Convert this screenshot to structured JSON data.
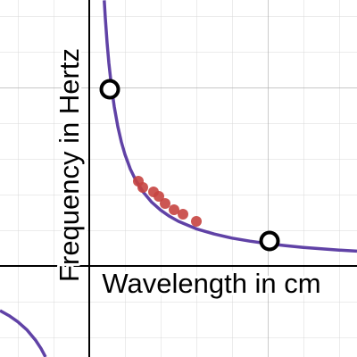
{
  "chart_data": {
    "type": "scatter",
    "x_label": "Wavelength in cm",
    "y_label": "Frequency in Hertz",
    "xlim": [
      -5,
      15
    ],
    "ylim": [
      -5.1,
      14.9
    ],
    "curve": {
      "color": "#6042a6",
      "x": [
        -5,
        -4.5,
        -4,
        -3.5,
        -3,
        -2.7,
        -2.45,
        null,
        0.84,
        0.9,
        1,
        1.1,
        1.25,
        1.4,
        1.6,
        1.8,
        2,
        2.3,
        2.6,
        3,
        3.5,
        4,
        4.5,
        5,
        6,
        7,
        8,
        9,
        10,
        11,
        12,
        13,
        14,
        15
      ],
      "values": [
        -2.5,
        -2.78,
        -3.13,
        -3.57,
        -4.17,
        -4.63,
        -5.1,
        null,
        14.88,
        13.89,
        12.5,
        11.36,
        10,
        8.93,
        7.81,
        6.94,
        6.25,
        5.43,
        4.81,
        4.17,
        3.57,
        3.13,
        2.78,
        2.5,
        2.08,
        1.79,
        1.56,
        1.39,
        1.25,
        1.14,
        1.04,
        0.96,
        0.89,
        0.83
      ]
    },
    "series": [
      {
        "color": "#c74440",
        "x": [
          2.75,
          3,
          3.6,
          3.9,
          4.25,
          4.75,
          5.25,
          6
        ],
        "values": [
          4.75,
          4.4,
          4.15,
          3.9,
          3.5,
          3.15,
          2.9,
          2.5
        ]
      },
      {
        "color": "#000000",
        "hollow": true,
        "x": [
          1.15,
          10.1
        ],
        "values": [
          9.9,
          1.4
        ]
      }
    ]
  }
}
